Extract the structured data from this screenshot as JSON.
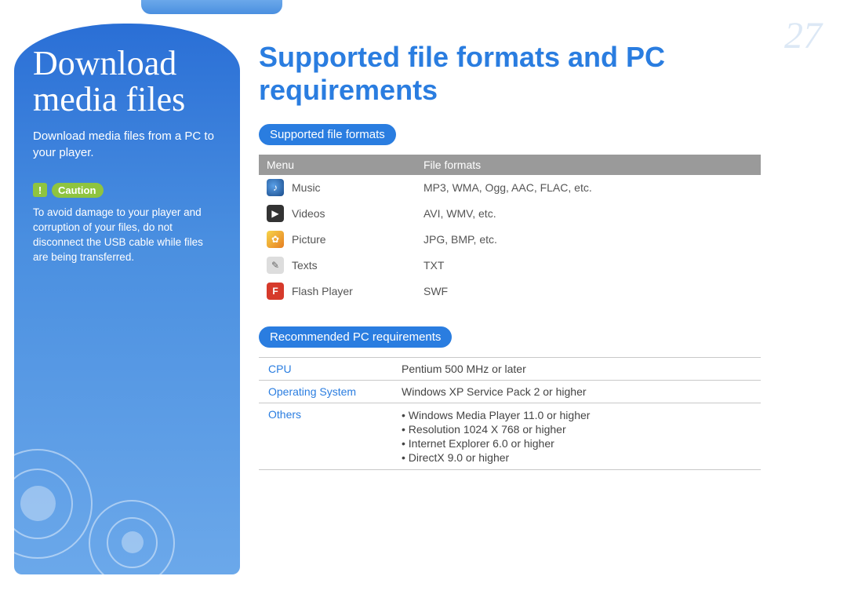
{
  "page_number": "27",
  "colors": {
    "accent": "#2a7de0",
    "sidebar_top": "#2a6fd6",
    "sidebar_bottom": "#6ba8ea",
    "caution_green": "#8fc43f",
    "table_header_bg": "#9a9a9a",
    "text_grey": "#555555",
    "page_num_color": "#dce8f5"
  },
  "sidebar": {
    "title_line1": "Download",
    "title_line2": "media files",
    "subtitle": "Download media files from a PC to your player.",
    "caution_label": "Caution",
    "caution_text": "To avoid damage to your player and corruption of your files, do not disconnect the USB cable while files are being transferred."
  },
  "main": {
    "title": "Supported file formats and PC requirements",
    "section1_label": "Supported file formats",
    "formats_table": {
      "headers": [
        "Menu",
        "File formats"
      ],
      "rows": [
        {
          "icon": "music-icon",
          "menu": "Music",
          "formats": "MP3, WMA, Ogg, AAC, FLAC, etc."
        },
        {
          "icon": "video-icon",
          "menu": "Videos",
          "formats": "AVI, WMV, etc."
        },
        {
          "icon": "picture-icon",
          "menu": "Picture",
          "formats": "JPG, BMP, etc."
        },
        {
          "icon": "text-icon",
          "menu": "Texts",
          "formats": "TXT"
        },
        {
          "icon": "flash-icon",
          "menu": "Flash Player",
          "formats": "SWF"
        }
      ]
    },
    "section2_label": "Recommended PC requirements",
    "req_table": {
      "rows": [
        {
          "key": "CPU",
          "value": "Pentium 500 MHz or later"
        },
        {
          "key": "Operating System",
          "value": "Windows XP Service Pack 2 or higher"
        },
        {
          "key": "Others",
          "list": [
            "Windows Media Player 11.0 or higher",
            "Resolution 1024 X 768 or higher",
            "Internet Explorer 6.0 or higher",
            "DirectX 9.0 or higher"
          ]
        }
      ]
    }
  }
}
